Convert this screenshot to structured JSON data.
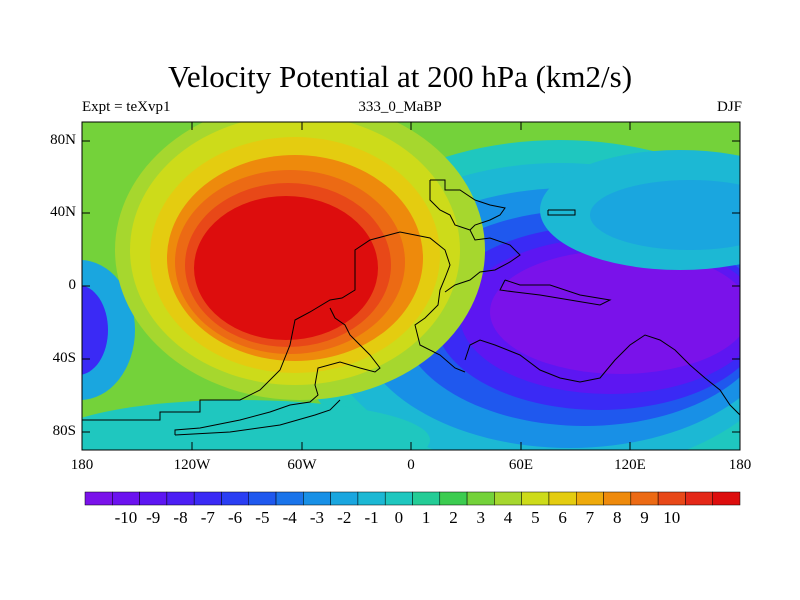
{
  "plot": {
    "title": "Velocity Potential at 200 hPa (km2/s)",
    "left_string": "Expt = teXvp1",
    "center_string": "333_0_MaBP",
    "right_string": "DJF"
  },
  "axes": {
    "lat_labels": [
      "80N",
      "40N",
      "0",
      "40S",
      "80S"
    ],
    "lon_labels": [
      "180",
      "120W",
      "60W",
      "0",
      "60E",
      "120E",
      "180"
    ]
  },
  "colorbar": {
    "labels": [
      "-10",
      "-9",
      "-8",
      "-7",
      "-6",
      "-5",
      "-4",
      "-3",
      "-2",
      "-1",
      "0",
      "1",
      "2",
      "3",
      "4",
      "5",
      "6",
      "7",
      "8",
      "9",
      "10"
    ],
    "colors": [
      "#7a12ea",
      "#6c12ef",
      "#5d16f2",
      "#4c1ef4",
      "#3a2af5",
      "#2a3ef3",
      "#1f58ee",
      "#1a74ea",
      "#1890e6",
      "#1aa6df",
      "#1cb8d4",
      "#1fc7bf",
      "#24cc96",
      "#3ccc50",
      "#74d23a",
      "#a6d72e",
      "#cddb1a",
      "#e4cc10",
      "#eeaa0c",
      "#ee8a0c",
      "#ec6a14",
      "#e84818",
      "#e42818",
      "#dd0d0d"
    ]
  },
  "map_data": {
    "type": "contour-fill",
    "variable": "Velocity Potential",
    "level": "200 hPa",
    "units": "km2/s",
    "season": "DJF",
    "experiment": "teXvp1",
    "contour_levels": [
      -10,
      -9,
      -8,
      -7,
      -6,
      -5,
      -4,
      -3,
      -2,
      -1,
      0,
      1,
      2,
      3,
      4,
      5,
      6,
      7,
      8,
      9,
      10
    ],
    "lon_range": [
      -180,
      180
    ],
    "lat_range": [
      -90,
      90
    ],
    "centers": [
      {
        "lon": -80,
        "lat": 20,
        "value": 11,
        "desc": "maximum over paleo continent"
      },
      {
        "lon": 80,
        "lat": -15,
        "value": -11,
        "desc": "minimum over eastern ocean"
      }
    ]
  }
}
